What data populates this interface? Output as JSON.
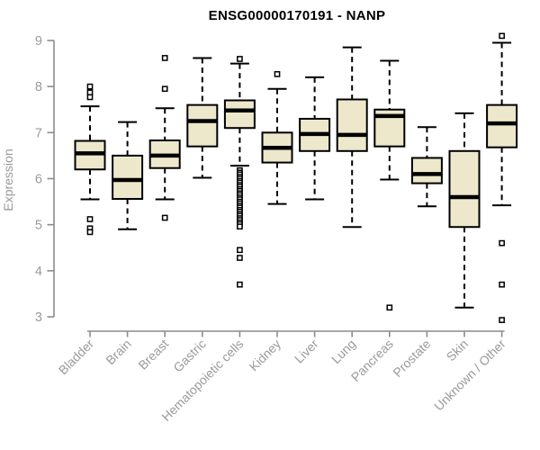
{
  "chart_data": {
    "type": "boxplot",
    "title": "ENSG00000170191 - NANP",
    "ylabel": "Expression",
    "xlabel": "",
    "ylim": [
      3,
      9
    ],
    "yticks": [
      3,
      4,
      5,
      6,
      7,
      8,
      9
    ],
    "grid": false,
    "legend": false,
    "colors": {
      "box_fill": "#ede8cc",
      "box_stroke": "#000000",
      "median": "#000000",
      "whisker": "#000000",
      "outlier_fill": "#ffffff",
      "axis_line": "#8c8c8c",
      "axis_text": "#9a9a9a",
      "title_text": "#000000",
      "background": "#ffffff"
    },
    "categories": [
      "Bladder",
      "Brain",
      "Breast",
      "Gastric",
      "Hematopoietic cells",
      "Kidney",
      "Liver",
      "Lung",
      "Pancreas",
      "Prostate",
      "Skin",
      "Unknown / Other"
    ],
    "series": [
      {
        "label": "Bladder",
        "whisker_low": 5.55,
        "q1": 6.2,
        "median": 6.55,
        "q3": 6.82,
        "whisker_high": 7.57,
        "outliers": [
          8.0,
          7.87,
          7.77,
          5.12,
          4.92,
          4.84
        ]
      },
      {
        "label": "Brain",
        "whisker_low": 4.9,
        "q1": 5.56,
        "median": 5.97,
        "q3": 6.5,
        "whisker_high": 7.23,
        "outliers": []
      },
      {
        "label": "Breast",
        "whisker_low": 5.55,
        "q1": 6.23,
        "median": 6.5,
        "q3": 6.83,
        "whisker_high": 7.53,
        "outliers": [
          8.62,
          7.95,
          5.15
        ]
      },
      {
        "label": "Gastric",
        "whisker_low": 6.02,
        "q1": 6.7,
        "median": 7.25,
        "q3": 7.6,
        "whisker_high": 8.62,
        "outliers": []
      },
      {
        "label": "Hematopoietic cells",
        "whisker_low": 6.28,
        "q1": 7.1,
        "median": 7.48,
        "q3": 7.7,
        "whisker_high": 8.5,
        "outliers": [
          8.6,
          6.18,
          6.13,
          6.09,
          6.04,
          6.0,
          5.95,
          5.91,
          5.86,
          5.82,
          5.77,
          5.73,
          5.68,
          5.64,
          5.59,
          5.55,
          5.5,
          5.46,
          5.41,
          5.37,
          5.32,
          5.28,
          5.23,
          5.19,
          5.14,
          5.1,
          5.05,
          5.01,
          4.96,
          4.45,
          4.28,
          3.7
        ]
      },
      {
        "label": "Kidney",
        "whisker_low": 5.45,
        "q1": 6.35,
        "median": 6.67,
        "q3": 7.0,
        "whisker_high": 7.95,
        "outliers": [
          8.27
        ]
      },
      {
        "label": "Liver",
        "whisker_low": 5.55,
        "q1": 6.6,
        "median": 6.97,
        "q3": 7.3,
        "whisker_high": 8.2,
        "outliers": []
      },
      {
        "label": "Lung",
        "whisker_low": 4.95,
        "q1": 6.6,
        "median": 6.95,
        "q3": 7.72,
        "whisker_high": 8.85,
        "outliers": []
      },
      {
        "label": "Pancreas",
        "whisker_low": 5.98,
        "q1": 6.7,
        "median": 7.36,
        "q3": 7.5,
        "whisker_high": 8.56,
        "outliers": [
          3.2
        ]
      },
      {
        "label": "Prostate",
        "whisker_low": 5.4,
        "q1": 5.9,
        "median": 6.1,
        "q3": 6.45,
        "whisker_high": 7.12,
        "outliers": []
      },
      {
        "label": "Skin",
        "whisker_low": 3.2,
        "q1": 4.95,
        "median": 5.6,
        "q3": 6.6,
        "whisker_high": 7.42,
        "outliers": []
      },
      {
        "label": "Unknown / Other",
        "whisker_low": 5.42,
        "q1": 6.68,
        "median": 7.2,
        "q3": 7.6,
        "whisker_high": 8.95,
        "outliers": [
          9.1,
          4.6,
          3.7,
          2.93
        ]
      }
    ]
  }
}
